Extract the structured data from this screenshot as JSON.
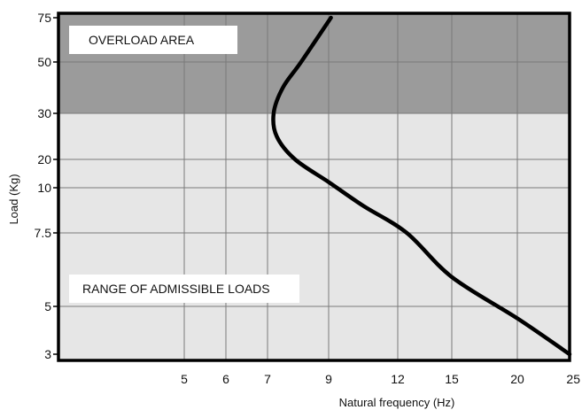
{
  "chart_data": {
    "type": "line",
    "title": "",
    "xlabel": "Natural frequency (Hz)",
    "ylabel": "Load (Kg)",
    "x_ticks": [
      "5",
      "6",
      "7",
      "9",
      "12",
      "15",
      "20",
      "25"
    ],
    "y_ticks": [
      "75",
      "50",
      "30",
      "20",
      "10",
      "7.5",
      "5",
      "3"
    ],
    "regions": [
      {
        "label": "OVERLOAD AREA",
        "y_from": "30",
        "y_to": "75",
        "color": "#9b9b9b"
      },
      {
        "label": "RANGE OF ADMISSIBLE LOADS",
        "y_from": "3",
        "y_to": "30",
        "color": "#e6e6e6"
      }
    ],
    "series": [
      {
        "color": "#000000",
        "points": [
          {
            "x": 9.1,
            "y": 75
          },
          {
            "x": 8.1,
            "y": 50
          },
          {
            "x": 7.5,
            "y": 40
          },
          {
            "x": 7.2,
            "y": 30
          },
          {
            "x": 7.3,
            "y": 25
          },
          {
            "x": 7.9,
            "y": 20
          },
          {
            "x": 9.0,
            "y": 12
          },
          {
            "x": 10.5,
            "y": 9
          },
          {
            "x": 12.5,
            "y": 7.5
          },
          {
            "x": 15.0,
            "y": 6
          },
          {
            "x": 20.0,
            "y": 4.5
          },
          {
            "x": 25.0,
            "y": 3
          }
        ]
      }
    ],
    "grid": true
  }
}
